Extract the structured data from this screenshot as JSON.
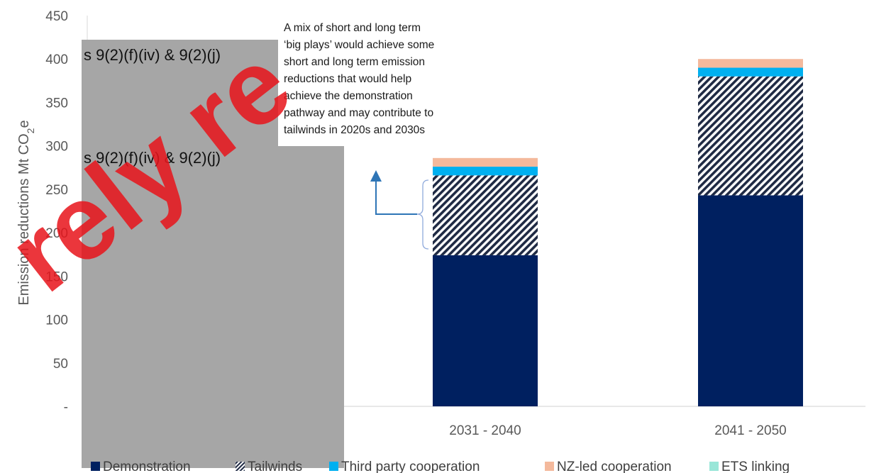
{
  "chart_data": {
    "type": "bar",
    "stacked": true,
    "ylabel_main": "Emission reductions Mt CO",
    "ylabel_sub": "2",
    "ylabel_tail": "e",
    "ylim": [
      0,
      450
    ],
    "yticks": [
      {
        "value": 0,
        "label": "-"
      },
      {
        "value": 50,
        "label": "50"
      },
      {
        "value": 100,
        "label": "100"
      },
      {
        "value": 150,
        "label": "150"
      },
      {
        "value": 200,
        "label": "200"
      },
      {
        "value": 250,
        "label": "250"
      },
      {
        "value": 300,
        "label": "300"
      },
      {
        "value": 350,
        "label": "350"
      },
      {
        "value": 400,
        "label": "400"
      },
      {
        "value": 450,
        "label": "450"
      }
    ],
    "categories": [
      "",
      "2031 - 2040",
      "2041  - 2050"
    ],
    "series": [
      {
        "name": "Demonstration",
        "color": "#002060",
        "pattern": "solid",
        "values": [
          null,
          174,
          243
        ]
      },
      {
        "name": "Tailwinds",
        "color": "#1f2a44",
        "pattern": "diagonal-hatch",
        "values": [
          null,
          92,
          137
        ]
      },
      {
        "name": "Third party cooperation",
        "color": "#00b0f0",
        "pattern": "solid",
        "values": [
          null,
          10,
          10
        ]
      },
      {
        "name": "NZ-led cooperation",
        "color": "#f4b99c",
        "pattern": "solid",
        "values": [
          null,
          10,
          10
        ]
      },
      {
        "name": "ETS linking",
        "color": "#99e6d8",
        "pattern": "solid",
        "values": [
          null,
          0,
          0
        ]
      }
    ],
    "grid": false,
    "legend_position": "bottom"
  },
  "annotation": {
    "lines": [
      "A mix of short and long term",
      "‘big plays’ would achieve some",
      "short and long term emission",
      "reductions that would help",
      "achieve the demonstration",
      "pathway and may contribute to",
      "tailwinds in 2020s and 2030s"
    ]
  },
  "redaction": {
    "label_1": "s 9(2)(f)(iv) & 9(2)(j)",
    "label_2": "s 9(2)(f)(iv) & 9(2)(j)",
    "color": "#a6a6a6"
  },
  "colors": {
    "accent_arrow": "#2e75b6",
    "bracket": "#8faadc",
    "watermark": "#e8141b"
  },
  "watermark": {
    "text": "rely re"
  }
}
